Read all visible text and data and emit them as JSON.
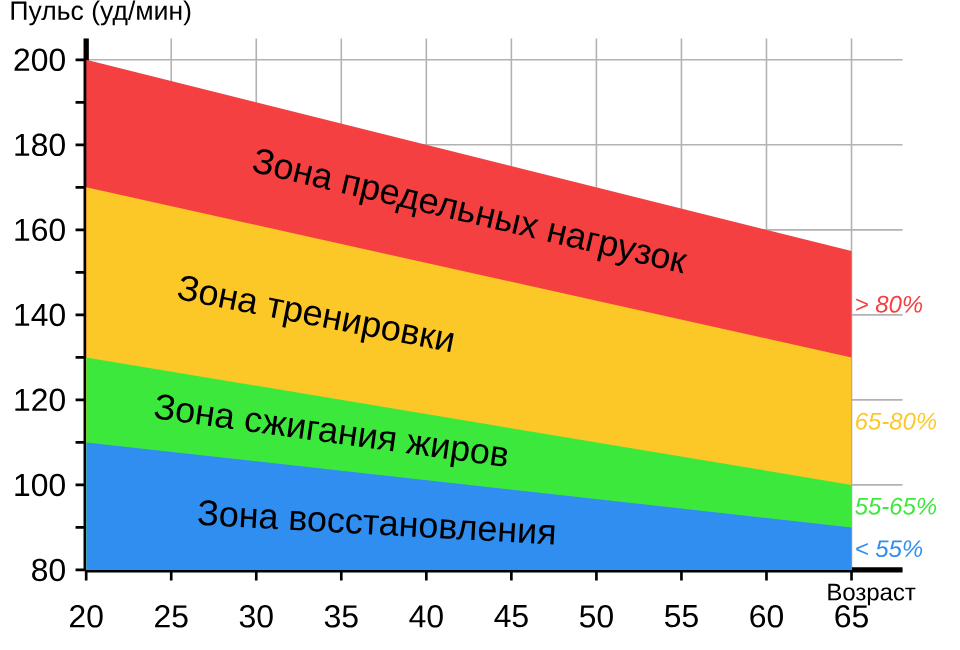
{
  "chart_data": {
    "type": "area",
    "xlabel": "Возраст",
    "ylabel": "Пульс (уд/мин)",
    "x": [
      20,
      65
    ],
    "series": [
      {
        "name": "Зона предельных нагрузок",
        "color": "#f44040",
        "values": [
          200,
          155
        ]
      },
      {
        "name": "Зона тренировки",
        "color": "#fcc828",
        "values": [
          170,
          130
        ]
      },
      {
        "name": "Зона сжигания жиров",
        "color": "#3de83d",
        "values": [
          130,
          100
        ]
      },
      {
        "name": "Зона восстановления",
        "color": "#2f8ef0",
        "values": [
          110,
          90
        ]
      }
    ],
    "annotations": [
      "> 80%",
      "65-80%",
      "55-65%",
      "< 55%"
    ],
    "xlim": [
      20,
      68
    ],
    "ylim": [
      80,
      205
    ],
    "xticks": [
      20,
      25,
      30,
      35,
      40,
      45,
      50,
      55,
      60,
      65
    ],
    "yticks": [
      80,
      100,
      120,
      140,
      160,
      180,
      200
    ],
    "grid": true
  }
}
